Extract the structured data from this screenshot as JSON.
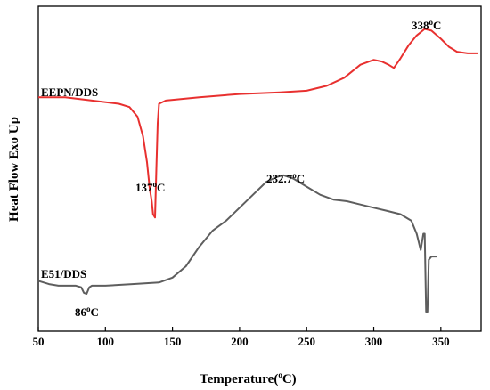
{
  "chart_data": {
    "type": "line",
    "title": "",
    "xlabel": {
      "main": "Temperature(",
      "sup": "o",
      "tail": "C)"
    },
    "ylabel": "Heat Flow Exo Up",
    "xlim": [
      50,
      380
    ],
    "xticks": [
      50,
      100,
      150,
      200,
      250,
      300,
      350
    ],
    "grid": false,
    "series": [
      {
        "name": "EEPN/DDS",
        "color": "#e8302f",
        "points": [
          [
            50,
            0.72
          ],
          [
            70,
            0.72
          ],
          [
            90,
            0.71
          ],
          [
            110,
            0.7
          ],
          [
            118,
            0.69
          ],
          [
            124,
            0.66
          ],
          [
            128,
            0.6
          ],
          [
            131,
            0.52
          ],
          [
            133,
            0.44
          ],
          [
            134.5,
            0.4
          ],
          [
            135.5,
            0.36
          ],
          [
            137,
            0.35
          ],
          [
            138,
            0.5
          ],
          [
            139,
            0.64
          ],
          [
            140,
            0.7
          ],
          [
            145,
            0.71
          ],
          [
            170,
            0.72
          ],
          [
            200,
            0.73
          ],
          [
            230,
            0.735
          ],
          [
            250,
            0.74
          ],
          [
            265,
            0.755
          ],
          [
            278,
            0.78
          ],
          [
            290,
            0.82
          ],
          [
            300,
            0.835
          ],
          [
            306,
            0.83
          ],
          [
            311,
            0.82
          ],
          [
            315,
            0.81
          ],
          [
            320,
            0.84
          ],
          [
            326,
            0.88
          ],
          [
            332,
            0.91
          ],
          [
            338,
            0.93
          ],
          [
            343,
            0.925
          ],
          [
            350,
            0.9
          ],
          [
            356,
            0.875
          ],
          [
            362,
            0.86
          ],
          [
            370,
            0.855
          ],
          [
            378,
            0.855
          ]
        ]
      },
      {
        "name": "E51/DDS",
        "color": "#5e5e5e",
        "points": [
          [
            50,
            0.155
          ],
          [
            58,
            0.145
          ],
          [
            65,
            0.14
          ],
          [
            72,
            0.14
          ],
          [
            78,
            0.14
          ],
          [
            82,
            0.135
          ],
          [
            84,
            0.118
          ],
          [
            86,
            0.115
          ],
          [
            88,
            0.135
          ],
          [
            90,
            0.14
          ],
          [
            100,
            0.14
          ],
          [
            120,
            0.145
          ],
          [
            140,
            0.15
          ],
          [
            150,
            0.165
          ],
          [
            160,
            0.2
          ],
          [
            170,
            0.26
          ],
          [
            180,
            0.31
          ],
          [
            190,
            0.34
          ],
          [
            200,
            0.38
          ],
          [
            210,
            0.42
          ],
          [
            220,
            0.46
          ],
          [
            228,
            0.475
          ],
          [
            232.7,
            0.48
          ],
          [
            240,
            0.47
          ],
          [
            250,
            0.445
          ],
          [
            260,
            0.42
          ],
          [
            270,
            0.405
          ],
          [
            280,
            0.4
          ],
          [
            290,
            0.39
          ],
          [
            300,
            0.38
          ],
          [
            310,
            0.37
          ],
          [
            320,
            0.36
          ],
          [
            328,
            0.34
          ],
          [
            332,
            0.3
          ],
          [
            335,
            0.25
          ],
          [
            337,
            0.3
          ],
          [
            338,
            0.3
          ],
          [
            339,
            0.06
          ],
          [
            340,
            0.06
          ],
          [
            341,
            0.22
          ],
          [
            343,
            0.23
          ],
          [
            347,
            0.23
          ]
        ]
      }
    ],
    "annotations": [
      {
        "base": "338",
        "sup": "o",
        "tail": "C",
        "x": 338
      },
      {
        "base": "137",
        "sup": "o",
        "tail": "C",
        "x": 137
      },
      {
        "base": "232.7",
        "sup": "o",
        "tail": "C",
        "x": 232.7
      },
      {
        "base": "86",
        "sup": "o",
        "tail": "C",
        "x": 86
      }
    ],
    "legend": "labels beside curves"
  }
}
